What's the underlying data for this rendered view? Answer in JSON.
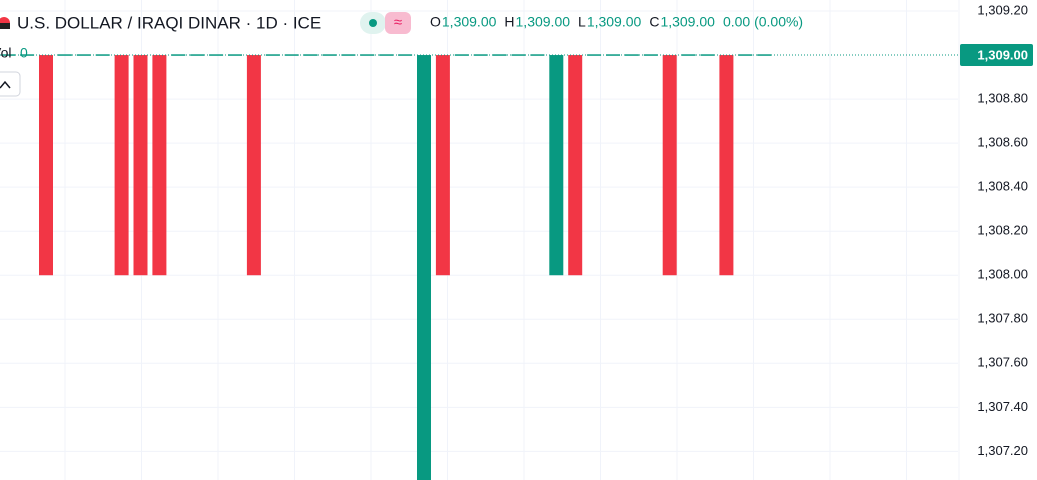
{
  "chart_data": {
    "type": "candlestick",
    "title": "U.S. DOLLAR / IRAQI DINAR · 1D · ICE",
    "ohlc_legend": [
      {
        "key": "O",
        "text": "1,309.00"
      },
      {
        "key": "H",
        "text": "1,309.00"
      },
      {
        "key": "L",
        "text": "1,309.00"
      },
      {
        "key": "C",
        "text": "1,309.00"
      }
    ],
    "change": "0.00 (0.00%)",
    "volume_legend": {
      "key": "Vol",
      "text": "0"
    },
    "up_color": "#089981",
    "down_color": "#f23645",
    "open": [
      1309,
      1309,
      1309,
      1309,
      1309,
      1309,
      1309,
      1309,
      1309,
      1309,
      1309,
      1309,
      1309,
      1309,
      1309,
      1309,
      1309,
      1309,
      1309,
      1309,
      1309,
      1309,
      1307,
      1309,
      1309,
      1309,
      1309,
      1309,
      1309,
      1308,
      1309,
      1309,
      1309,
      1309,
      1309,
      1309,
      1309,
      1309,
      1309,
      1309,
      1309
    ],
    "close": [
      1309,
      1309,
      1308,
      1309,
      1309,
      1309,
      1308,
      1308,
      1308,
      1309,
      1309,
      1309,
      1309,
      1308,
      1309,
      1309,
      1309,
      1309,
      1309,
      1309,
      1309,
      1309,
      1309,
      1308,
      1309,
      1309,
      1309,
      1309,
      1309,
      1309,
      1308,
      1309,
      1309,
      1309,
      1309,
      1308,
      1309,
      1309,
      1308,
      1309,
      1309
    ],
    "ylim": [
      1307.07,
      1309.25
    ],
    "yticks": [
      {
        "value": 1307.2,
        "label": "1,307.20"
      },
      {
        "value": 1307.4,
        "label": "1,307.40"
      },
      {
        "value": 1307.6,
        "label": "1,307.60"
      },
      {
        "value": 1307.8,
        "label": "1,307.80"
      },
      {
        "value": 1308.0,
        "label": "1,308.00"
      },
      {
        "value": 1308.2,
        "label": "1,308.20"
      },
      {
        "value": 1308.4,
        "label": "1,308.40"
      },
      {
        "value": 1308.6,
        "label": "1,308.60"
      },
      {
        "value": 1308.8,
        "label": "1,308.80"
      },
      {
        "value": 1309.2,
        "label": "1,309.20"
      }
    ],
    "last_price": {
      "value": 1309,
      "label": "1,309.00"
    },
    "grid": true
  }
}
